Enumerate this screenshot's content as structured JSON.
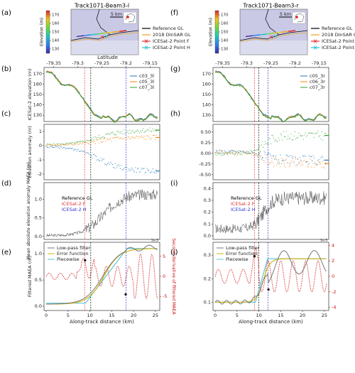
{
  "figure": {
    "columns": [
      {
        "title": "Track1071-Beam3-l",
        "letters": [
          "(a)",
          "(b)",
          "(c)",
          "(d)",
          "(e)"
        ]
      },
      {
        "title": "Track1071-Beam3-r",
        "letters": [
          "(f)",
          "(g)",
          "(h)",
          "(i)",
          "(j)"
        ]
      }
    ]
  },
  "colors": {
    "reference_gl": "#000000",
    "dinsar_gl": "#e8a020",
    "point_f": "#e03030",
    "point_h": "#3030d0",
    "cyan": "#20c0d0",
    "map_fill": "#c9c9e6",
    "c03": "#1f77b4",
    "c05": "#ff7f0e",
    "c07": "#2ca02c",
    "lowpass": "#777777",
    "error_fn": "#d4b20a",
    "piecewise": "#5fc6d4",
    "second_deriv": "#cc1111"
  },
  "chart_data": [
    {
      "panel": "a",
      "type": "map",
      "colorbar": {
        "label": "Elevation (m)",
        "ticks": [
          130,
          140,
          150,
          160,
          170
        ],
        "range": [
          125,
          175
        ]
      },
      "scale_label": "5 km",
      "legend": [
        "Reference GL",
        "2018 DInSAR GL",
        "ICESat-2 Point F",
        "ICESat-2 Point H"
      ]
    },
    {
      "panel": "f",
      "type": "map",
      "colorbar": {
        "label": "Elevation (m)",
        "ticks": [
          130,
          140,
          150,
          160,
          170
        ],
        "range": [
          125,
          175
        ]
      },
      "scale_label": "5 km",
      "legend": [
        "Reference GL",
        "2018 DInSAR GL",
        "ICESat-2 Point F",
        "ICESat-2 Point H"
      ]
    },
    {
      "panel": "b",
      "type": "line",
      "xlabel": "Latitude",
      "xticks": [
        -79.35,
        -79.3,
        -79.25,
        -79.2,
        -79.15
      ],
      "ylabel": "ICESat-2 elevation (m)",
      "yticks": [
        130,
        140,
        150,
        160,
        170
      ],
      "series_names": [
        "c03_3l",
        "c05_3l",
        "c07_3l"
      ]
    },
    {
      "panel": "g",
      "type": "line",
      "xlabel": "Latitude",
      "xticks": [
        -79.35,
        -79.3,
        -79.25,
        -79.2,
        -79.15
      ],
      "yticks": [
        130,
        140,
        150,
        160,
        170
      ],
      "series_names": [
        "c05_3r",
        "c06_3r",
        "c07_3r"
      ]
    },
    {
      "panel": "c",
      "type": "scatter",
      "ylabel": "Elevation anomaly (m)",
      "yticks": [
        "1",
        "0",
        "-1",
        "-2"
      ],
      "ytick_values": [
        1,
        0,
        -1,
        -2
      ],
      "ylim": [
        -2.4,
        1.5
      ]
    },
    {
      "panel": "h",
      "type": "scatter",
      "yticks": [
        "0.50",
        "0.25",
        "0.00",
        "-0.25",
        "-0.50"
      ],
      "ytick_values": [
        0.5,
        0.25,
        0,
        -0.25,
        -0.5
      ],
      "ylim": [
        -0.62,
        0.68
      ]
    },
    {
      "panel": "d",
      "type": "line",
      "ylabel": "Mean absolute elevation anomaly MAEA (m)",
      "yticks": [
        "0.0",
        "0.5",
        "1.0"
      ],
      "ytick_values": [
        0,
        0.5,
        1.0
      ],
      "ylim": [
        -0.08,
        1.45
      ],
      "annotations": [
        "Reference GL",
        "ICESat-2 F",
        "ICESat-2 H"
      ]
    },
    {
      "panel": "i",
      "type": "line",
      "yticks": [
        "0.0",
        "0.1",
        "0.2",
        "0.3",
        "0.4"
      ],
      "ytick_values": [
        0,
        0.1,
        0.2,
        0.3,
        0.4
      ],
      "ylim": [
        -0.03,
        0.45
      ],
      "annotations": [
        "Reference GL",
        "ICESat-2 F",
        "ICESat-2 H"
      ]
    },
    {
      "panel": "e",
      "type": "line",
      "xlabel": "Along-track distance (km)",
      "xticks": [
        0,
        5,
        10,
        15,
        20,
        25
      ],
      "ylabel": "Filtered MAEA (m)",
      "yticks": [
        "0.0",
        "0.5",
        "1.0"
      ],
      "ytick_values": [
        0,
        0.5,
        1.0
      ],
      "ylim": [
        -0.08,
        1.22
      ],
      "y2label": "Second derivative of filtered MAEA",
      "y2ticks": [
        "-5",
        "0",
        "5"
      ],
      "y2tick_values": [
        -5,
        0,
        5
      ],
      "y2lim": [
        -8.5,
        8.5
      ],
      "offset_label": "1e-3",
      "legend": [
        "Low-pass filter",
        "Error function",
        "Piecewise"
      ]
    },
    {
      "panel": "j",
      "type": "line",
      "xlabel": "Along-track distance (km)",
      "xticks": [
        0,
        5,
        10,
        15,
        20,
        25
      ],
      "yticks": [
        "0.1",
        "0.2",
        "0.3"
      ],
      "ytick_values": [
        0.1,
        0.2,
        0.3
      ],
      "ylim": [
        0.065,
        0.355
      ],
      "y2ticks": [
        "-4",
        "-2",
        "0",
        "2",
        "4"
      ],
      "y2tick_values": [
        -4,
        -2,
        0,
        2,
        4
      ],
      "y2lim": [
        -4.4,
        4.4
      ],
      "offset_label": "1e-3",
      "legend": [
        "Low-pass filter",
        "Error function",
        "Piecewise"
      ]
    }
  ]
}
